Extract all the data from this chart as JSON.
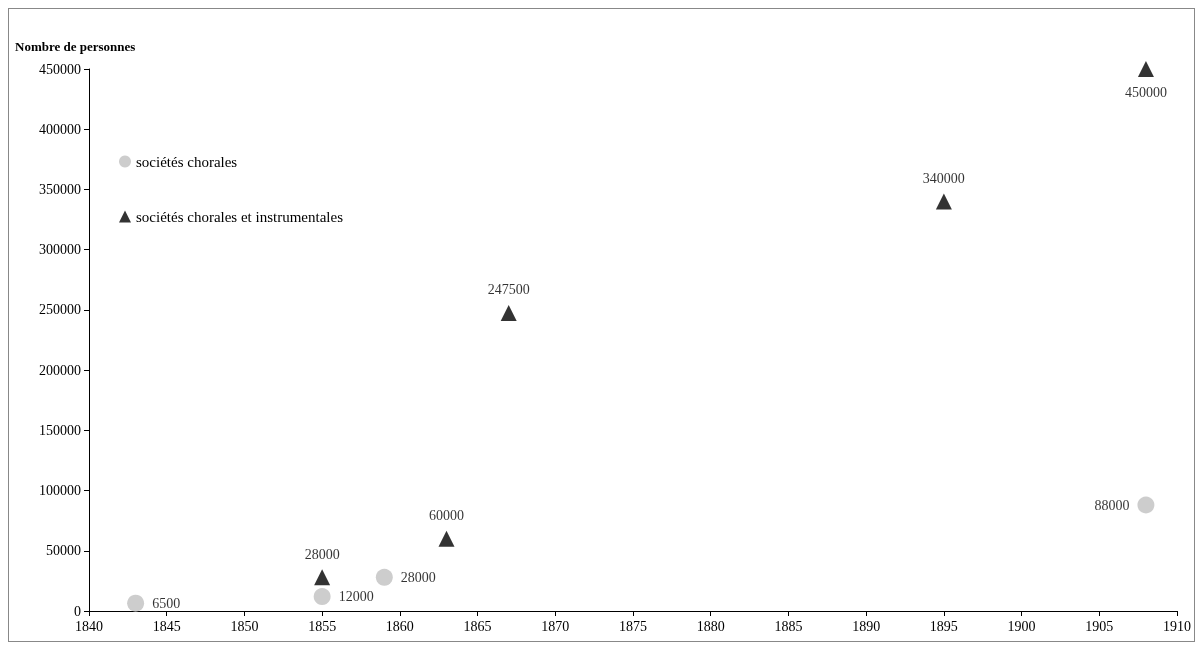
{
  "chart_data": {
    "type": "scatter",
    "ylabel": "Nombre de personnes",
    "series": [
      {
        "name": "sociétés chorales",
        "color": "#c0c0c0",
        "marker": "circle",
        "x": [
          1843,
          1855,
          1859,
          1908
        ],
        "values": [
          6500,
          12000,
          28000,
          88000
        ]
      },
      {
        "name": "sociétés chorales et instrumentales",
        "color": "#000000",
        "marker": "triangle",
        "x": [
          1855,
          1863,
          1867,
          1895,
          1908
        ],
        "values": [
          28000,
          60000,
          247500,
          340000,
          450000
        ]
      }
    ],
    "xlim": [
      1840,
      1910
    ],
    "xticks": [
      1840,
      1845,
      1850,
      1855,
      1860,
      1865,
      1870,
      1875,
      1880,
      1885,
      1890,
      1895,
      1900,
      1905,
      1910
    ],
    "ylim": [
      0,
      450000
    ],
    "yticks": [
      0,
      50000,
      100000,
      150000,
      200000,
      250000,
      300000,
      350000,
      400000,
      450000
    ],
    "grid": false,
    "legend": "top left",
    "data_labels": true
  }
}
